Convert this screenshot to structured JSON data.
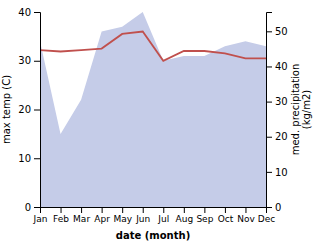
{
  "chart_data": {
    "type": "line",
    "categories": [
      "Jan",
      "Feb",
      "Mar",
      "Apr",
      "May",
      "Jun",
      "Jul",
      "Aug",
      "Sep",
      "Oct",
      "Nov",
      "Dec"
    ],
    "series": [
      {
        "type": "area",
        "color": "#c5cce8",
        "values": [
          34,
          15,
          22,
          36,
          37,
          40,
          30,
          31,
          31,
          33,
          34,
          33
        ]
      },
      {
        "type": "line",
        "color": "#c0504d",
        "values": [
          32.2,
          31.9,
          32.2,
          32.5,
          35.5,
          36.0,
          30.0,
          32.0,
          32.0,
          31.5,
          30.5,
          30.5
        ]
      }
    ],
    "xlabel": "date (month)",
    "ylabel": "max temp (C)",
    "y2label": "med. precipitation\n(kg/m2)",
    "ylim": [
      0,
      40
    ],
    "yticks": [
      0,
      10,
      20,
      30,
      40
    ],
    "y2lim": [
      0,
      55.5
    ],
    "y2ticks": [
      0,
      10,
      20,
      30,
      40,
      50
    ],
    "grid": false
  }
}
